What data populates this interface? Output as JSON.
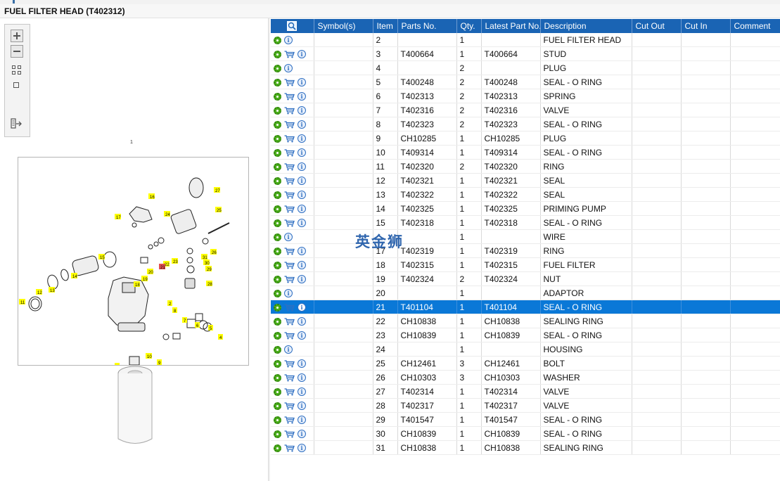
{
  "window": {
    "title": "FUEL FILTER HEAD (T402312)"
  },
  "diagram": {
    "ref_label": "1",
    "callouts": [
      "2",
      "3",
      "4",
      "5",
      "6",
      "7",
      "8",
      "9",
      "10",
      "11",
      "12",
      "13",
      "14",
      "15",
      "16",
      "17",
      "18",
      "19",
      "20",
      "21",
      "22",
      "23",
      "24",
      "25",
      "26",
      "27",
      "28",
      "29",
      "30",
      "31"
    ],
    "highlighted_callout": "21"
  },
  "toolbar": {
    "zoom_in": "zoom-in-icon",
    "zoom_out": "zoom-out-icon",
    "fit": "fit-icon",
    "actual": "actual-size-icon",
    "export": "export-icon"
  },
  "columns": [
    "",
    "Symbol(s)",
    "Item",
    "Parts No.",
    "Qty.",
    "Latest Part No.",
    "Description",
    "Cut Out",
    "Cut In",
    "Comment"
  ],
  "rows": [
    {
      "item": "2",
      "part": "",
      "qty": "1",
      "latest": "",
      "desc": "FUEL FILTER HEAD",
      "cart": false
    },
    {
      "item": "3",
      "part": "T400664",
      "qty": "1",
      "latest": "T400664",
      "desc": "STUD",
      "cart": true
    },
    {
      "item": "4",
      "part": "",
      "qty": "2",
      "latest": "",
      "desc": "PLUG",
      "cart": false
    },
    {
      "item": "5",
      "part": "T400248",
      "qty": "2",
      "latest": "T400248",
      "desc": "SEAL - O RING",
      "cart": true
    },
    {
      "item": "6",
      "part": "T402313",
      "qty": "2",
      "latest": "T402313",
      "desc": "SPRING",
      "cart": true
    },
    {
      "item": "7",
      "part": "T402316",
      "qty": "2",
      "latest": "T402316",
      "desc": "VALVE",
      "cart": true
    },
    {
      "item": "8",
      "part": "T402323",
      "qty": "2",
      "latest": "T402323",
      "desc": "SEAL - O RING",
      "cart": true
    },
    {
      "item": "9",
      "part": "CH10285",
      "qty": "1",
      "latest": "CH10285",
      "desc": "PLUG",
      "cart": true
    },
    {
      "item": "10",
      "part": "T409314",
      "qty": "1",
      "latest": "T409314",
      "desc": "SEAL - O RING",
      "cart": true
    },
    {
      "item": "11",
      "part": "T402320",
      "qty": "2",
      "latest": "T402320",
      "desc": "RING",
      "cart": true
    },
    {
      "item": "12",
      "part": "T402321",
      "qty": "1",
      "latest": "T402321",
      "desc": "SEAL",
      "cart": true
    },
    {
      "item": "13",
      "part": "T402322",
      "qty": "1",
      "latest": "T402322",
      "desc": "SEAL",
      "cart": true
    },
    {
      "item": "14",
      "part": "T402325",
      "qty": "1",
      "latest": "T402325",
      "desc": "PRIMING PUMP",
      "cart": true
    },
    {
      "item": "15",
      "part": "T402318",
      "qty": "1",
      "latest": "T402318",
      "desc": "SEAL - O RING",
      "cart": true
    },
    {
      "item": "",
      "part": "",
      "qty": "1",
      "latest": "",
      "desc": "WIRE",
      "cart": false
    },
    {
      "item": "17",
      "part": "T402319",
      "qty": "1",
      "latest": "T402319",
      "desc": "RING",
      "cart": true
    },
    {
      "item": "18",
      "part": "T402315",
      "qty": "1",
      "latest": "T402315",
      "desc": "FUEL FILTER",
      "cart": true
    },
    {
      "item": "19",
      "part": "T402324",
      "qty": "2",
      "latest": "T402324",
      "desc": "NUT",
      "cart": true
    },
    {
      "item": "20",
      "part": "",
      "qty": "1",
      "latest": "",
      "desc": "ADAPTOR",
      "cart": false
    },
    {
      "item": "21",
      "part": "T401104",
      "qty": "1",
      "latest": "T401104",
      "desc": "SEAL - O RING",
      "cart": true,
      "selected": true
    },
    {
      "item": "22",
      "part": "CH10838",
      "qty": "1",
      "latest": "CH10838",
      "desc": "SEALING RING",
      "cart": true
    },
    {
      "item": "23",
      "part": "CH10839",
      "qty": "1",
      "latest": "CH10839",
      "desc": "SEAL - O RING",
      "cart": true
    },
    {
      "item": "24",
      "part": "",
      "qty": "1",
      "latest": "",
      "desc": "HOUSING",
      "cart": false
    },
    {
      "item": "25",
      "part": "CH12461",
      "qty": "3",
      "latest": "CH12461",
      "desc": "BOLT",
      "cart": true
    },
    {
      "item": "26",
      "part": "CH10303",
      "qty": "3",
      "latest": "CH10303",
      "desc": "WASHER",
      "cart": true
    },
    {
      "item": "27",
      "part": "T402314",
      "qty": "1",
      "latest": "T402314",
      "desc": "VALVE",
      "cart": true
    },
    {
      "item": "28",
      "part": "T402317",
      "qty": "1",
      "latest": "T402317",
      "desc": "VALVE",
      "cart": true
    },
    {
      "item": "29",
      "part": "T401547",
      "qty": "1",
      "latest": "T401547",
      "desc": "SEAL - O RING",
      "cart": true
    },
    {
      "item": "30",
      "part": "CH10839",
      "qty": "1",
      "latest": "CH10839",
      "desc": "SEAL - O RING",
      "cart": true
    },
    {
      "item": "31",
      "part": "CH10838",
      "qty": "1",
      "latest": "CH10838",
      "desc": "SEALING RING",
      "cart": true
    }
  ],
  "watermark": "英金狮"
}
